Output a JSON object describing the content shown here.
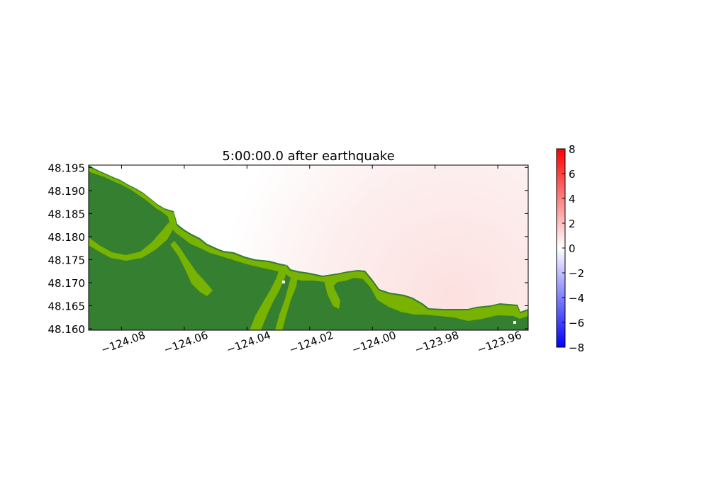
{
  "chart_data": {
    "type": "heatmap",
    "title": "5:00:00.0 after earthquake",
    "xlabel": "",
    "ylabel": "",
    "xlim": [
      -124.0905,
      -123.9503
    ],
    "ylim": [
      48.1597,
      48.1955
    ],
    "x_ticks": [
      -124.08,
      -124.06,
      -124.04,
      -124.02,
      -124.0,
      -123.98,
      -123.96
    ],
    "x_tick_labels": [
      "−124.08",
      "−124.06",
      "−124.04",
      "−124.02",
      "−124.00",
      "−123.98",
      "−123.96"
    ],
    "y_ticks": [
      48.16,
      48.165,
      48.17,
      48.175,
      48.18,
      48.185,
      48.19,
      48.195
    ],
    "y_tick_labels": [
      "48.160",
      "48.165",
      "48.170",
      "48.175",
      "48.180",
      "48.185",
      "48.190",
      "48.195"
    ],
    "colorbar": {
      "range": [
        -8,
        8
      ],
      "ticks": [
        -8,
        -6,
        -4,
        -2,
        0,
        2,
        4,
        6,
        8
      ],
      "tick_labels": [
        "−8",
        "−6",
        "−4",
        "−2",
        "0",
        "2",
        "4",
        "6",
        "8"
      ],
      "colormap": [
        "#0000ff",
        "#ffffff",
        "#ff0000"
      ]
    },
    "water_surface": {
      "peak_value": 0.8,
      "peak_location": [
        -123.985,
        48.166
      ],
      "colors": [
        "#ffffff",
        "#fde0e0"
      ]
    },
    "land": {
      "colors": {
        "lowland": "#347f30",
        "upland": "#77b300"
      }
    },
    "grid": false
  }
}
